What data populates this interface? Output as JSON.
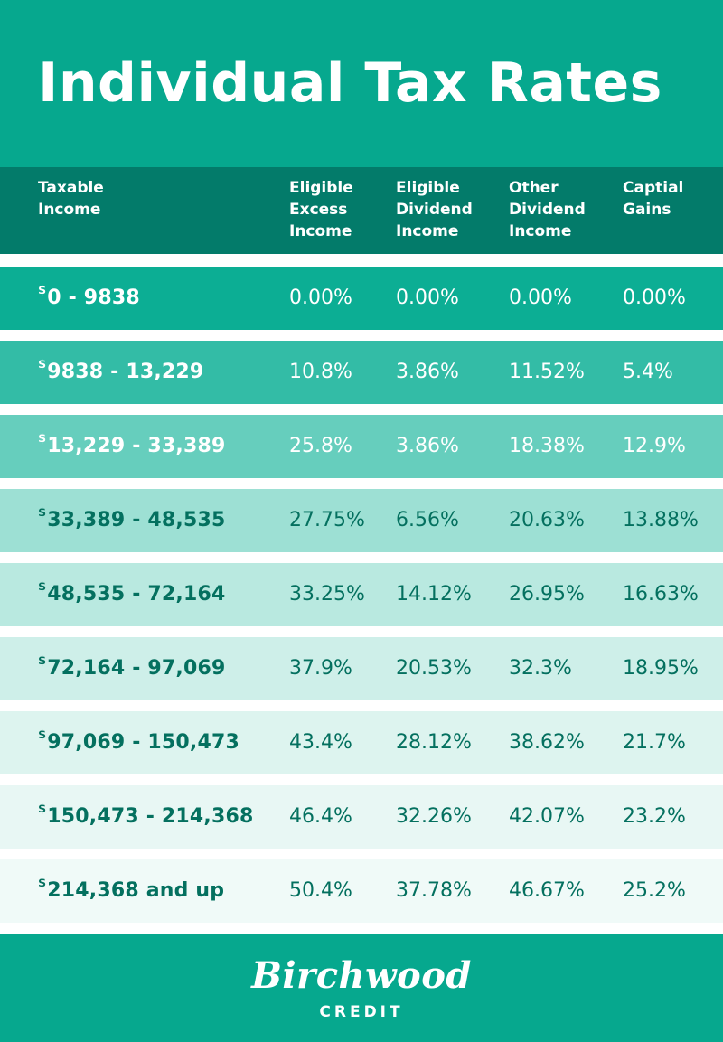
{
  "title": "Individual Tax Rates",
  "header": {
    "col1": [
      "Taxable",
      "Income"
    ],
    "col2": [
      "Eligible",
      "Excess",
      "Income"
    ],
    "col3": [
      "Eligible",
      "Dividend",
      "Income"
    ],
    "col4": [
      "Other",
      "Dividend",
      "Income"
    ],
    "col5": [
      "Captial",
      "Gains"
    ]
  },
  "currency_symbol": "$",
  "rows": [
    {
      "range": "0 - 9838",
      "excess": "0.00%",
      "eligible_dividend": "0.00%",
      "other_dividend": "0.00%",
      "capital_gains": "0.00%",
      "bg": "#0cae94"
    },
    {
      "range": "9838 - 13,229",
      "excess": "10.8%",
      "eligible_dividend": "3.86%",
      "other_dividend": "11.52%",
      "capital_gains": "5.4%",
      "bg": "#33bca6"
    },
    {
      "range": "13,229 - 33,389",
      "excess": "25.8%",
      "eligible_dividend": "3.86%",
      "other_dividend": "18.38%",
      "capital_gains": "12.9%",
      "bg": "#66cebd"
    },
    {
      "range": "33,389 - 48,535",
      "excess": "27.75%",
      "eligible_dividend": "6.56%",
      "other_dividend": "20.63%",
      "capital_gains": "13.88%",
      "bg": "#9de0d4"
    },
    {
      "range": "48,535 - 72,164",
      "excess": "33.25%",
      "eligible_dividend": "14.12%",
      "other_dividend": "26.95%",
      "capital_gains": "16.63%",
      "bg": "#b9e9e0"
    },
    {
      "range": "72,164 - 97,069",
      "excess": "37.9%",
      "eligible_dividend": "20.53%",
      "other_dividend": "32.3%",
      "capital_gains": "18.95%",
      "bg": "#ceefe9"
    },
    {
      "range": "97,069 - 150,473",
      "excess": "43.4%",
      "eligible_dividend": "28.12%",
      "other_dividend": "38.62%",
      "capital_gains": "21.7%",
      "bg": "#ddf4ef"
    },
    {
      "range": "150,473 - 214,368",
      "excess": "46.4%",
      "eligible_dividend": "32.26%",
      "other_dividend": "42.07%",
      "capital_gains": "23.2%",
      "bg": "#e8f7f4"
    },
    {
      "range": "214,368 and up",
      "excess": "50.4%",
      "eligible_dividend": "37.78%",
      "other_dividend": "46.67%",
      "capital_gains": "25.2%",
      "bg": "#f0faf8"
    }
  ],
  "footer": {
    "logo_text": "Birchwood",
    "logo_sub": "CREDIT"
  }
}
